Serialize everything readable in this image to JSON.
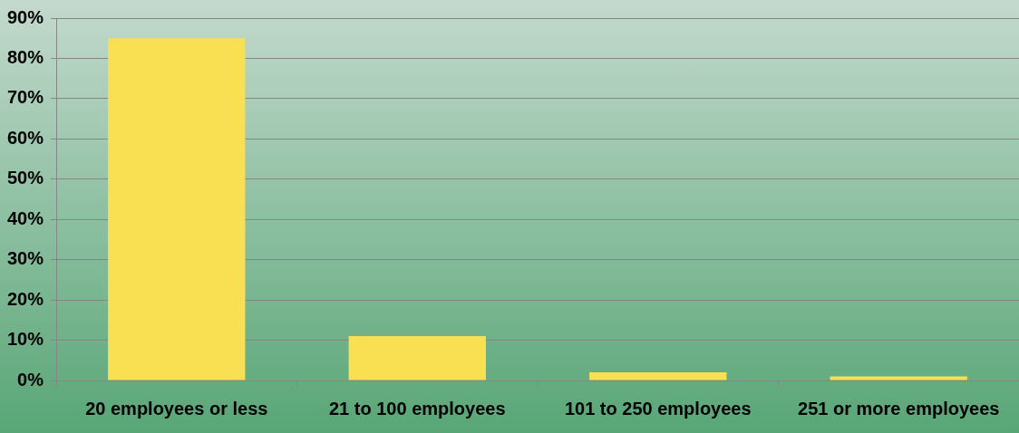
{
  "chart_data": {
    "type": "bar",
    "categories": [
      "20 employees or less",
      "21 to 100 employees",
      "101 to 250 employees",
      "251 or more employees"
    ],
    "values": [
      85,
      11,
      2,
      1
    ],
    "color": "#f9df52",
    "ylim": [
      0,
      90
    ],
    "yticks": [
      {
        "value": 0,
        "label": "0%"
      },
      {
        "value": 10,
        "label": "10%"
      },
      {
        "value": 20,
        "label": "20%"
      },
      {
        "value": 30,
        "label": "30%"
      },
      {
        "value": 40,
        "label": "40%"
      },
      {
        "value": 50,
        "label": "50%"
      },
      {
        "value": 60,
        "label": "60%"
      },
      {
        "value": 70,
        "label": "70%"
      },
      {
        "value": 80,
        "label": "80%"
      },
      {
        "value": 90,
        "label": "90%"
      }
    ],
    "grid": "y",
    "legend": false
  }
}
